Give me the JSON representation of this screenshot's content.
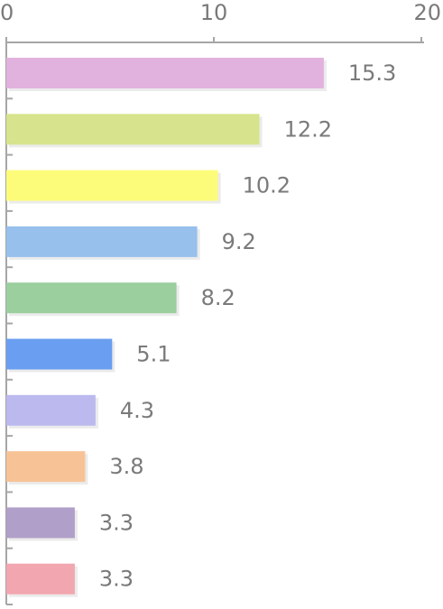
{
  "chart_data": {
    "type": "bar",
    "orientation": "horizontal",
    "axis_position": "top",
    "xlim": [
      0,
      20
    ],
    "x_ticks": [
      0,
      10,
      20
    ],
    "tick_labels": [
      "0",
      "10",
      "20"
    ],
    "values": [
      15.3,
      12.2,
      10.2,
      9.2,
      8.2,
      5.1,
      4.3,
      3.8,
      3.3,
      3.3
    ],
    "labels": [
      "15.3",
      "12.2",
      "10.2",
      "9.2",
      "8.2",
      "5.1",
      "4.3",
      "3.8",
      "3.3",
      "3.3"
    ],
    "colors": [
      "#e2b2de",
      "#d7e48d",
      "#fdfc7a",
      "#97c0ec",
      "#9bcf9e",
      "#6a9ef0",
      "#bcb9ef",
      "#f7c396",
      "#b09fc8",
      "#f2a6b0"
    ],
    "grid": false,
    "legend": "none"
  }
}
